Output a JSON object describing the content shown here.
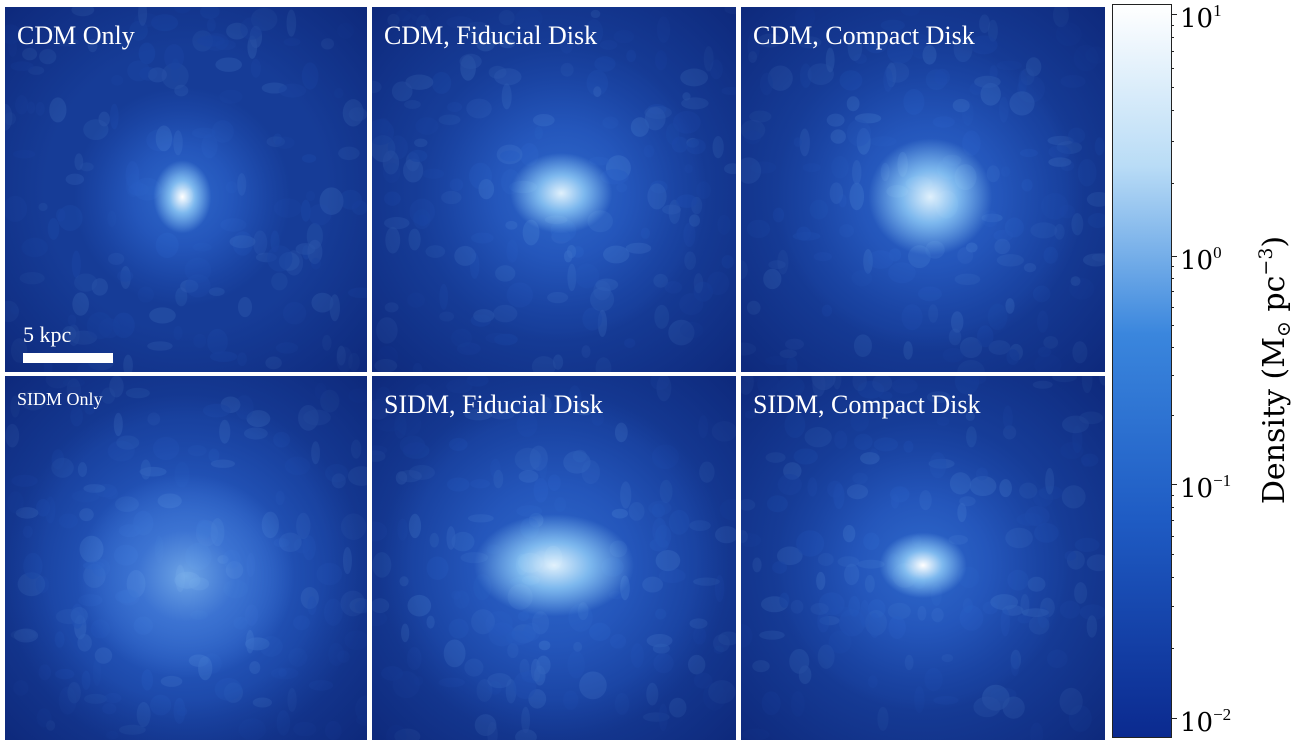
{
  "panels": [
    {
      "label": "CDM Only",
      "label_size": "large",
      "core_peak": 0.95,
      "core_size": "small",
      "core_shape": "point"
    },
    {
      "label": "CDM, Fiducial Disk",
      "label_size": "large",
      "core_peak": 0.85,
      "core_size": "medium",
      "core_shape": "ellipse"
    },
    {
      "label": "CDM, Compact Disk",
      "label_size": "large",
      "core_peak": 0.8,
      "core_size": "large",
      "core_shape": "round"
    },
    {
      "label": "SIDM Only",
      "label_size": "small",
      "core_peak": 0.25,
      "core_size": "large",
      "core_shape": "diffuse"
    },
    {
      "label": "SIDM, Fiducial Disk",
      "label_size": "large",
      "core_peak": 0.85,
      "core_size": "large",
      "core_shape": "wide-ellipse"
    },
    {
      "label": "SIDM, Compact Disk",
      "label_size": "large",
      "core_peak": 1.0,
      "core_size": "medium",
      "core_shape": "bright-ellipse"
    }
  ],
  "scalebar": {
    "label": "5 kpc"
  },
  "colorbar": {
    "scale": "log",
    "range": [
      0.01,
      10
    ],
    "ticks": [
      {
        "base": "10",
        "exp": "1"
      },
      {
        "base": "10",
        "exp": "0"
      },
      {
        "base": "10",
        "exp": "−1"
      },
      {
        "base": "10",
        "exp": "−2"
      }
    ],
    "title_prefix": "Density  (M",
    "title_sub": "⊙",
    "title_mid": "  pc",
    "title_exp": "−3",
    "title_suffix": ")",
    "colors": {
      "low": "#0b2a8f",
      "mid": "#3a86dd",
      "high": "#ffffff"
    }
  }
}
